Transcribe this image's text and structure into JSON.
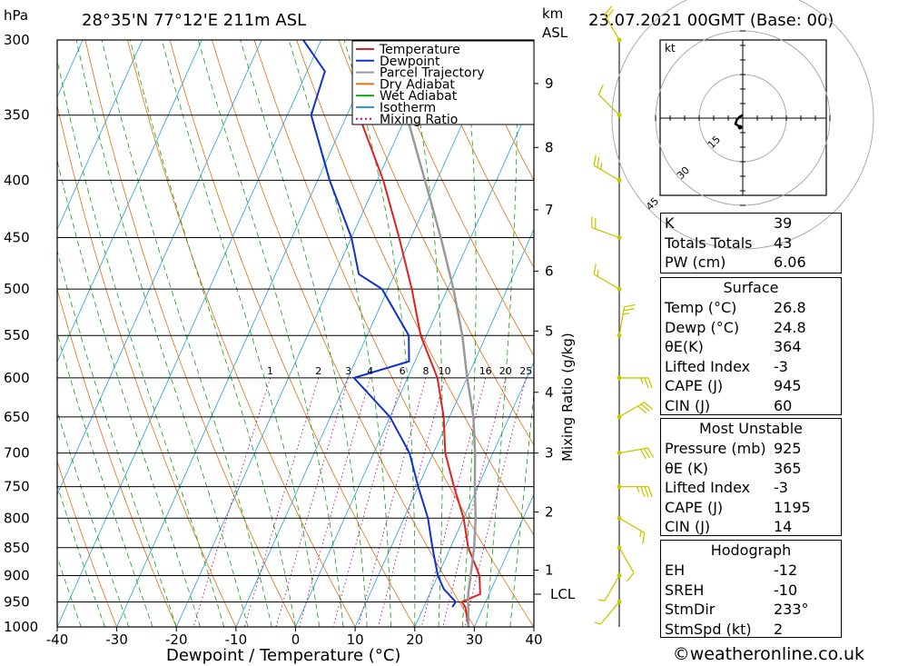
{
  "header": {
    "left_unit": "hPa",
    "location": "28°35'N  77°12'E  211m  ASL",
    "km_label": "km",
    "asl_label": "ASL",
    "datetime": "23.07.2021  00GMT  (Base: 00)"
  },
  "chart_data": {
    "type": "skew-t",
    "xlabel": "Dewpoint / Temperature (°C)",
    "ylabel_left": "hPa",
    "mixing_ratio_axis_label": "Mixing Ratio (g/kg)",
    "x_ticks": [
      -40,
      -30,
      -20,
      -10,
      0,
      10,
      20,
      30,
      40
    ],
    "pressure_levels": [
      300,
      350,
      400,
      450,
      500,
      550,
      600,
      650,
      700,
      750,
      800,
      850,
      900,
      950,
      1000
    ],
    "height_ticks_km": [
      {
        "km": "1",
        "p": 890
      },
      {
        "km": "2",
        "p": 790
      },
      {
        "km": "3",
        "p": 700
      },
      {
        "km": "4",
        "p": 618
      },
      {
        "km": "5",
        "p": 545
      },
      {
        "km": "6",
        "p": 482
      },
      {
        "km": "7",
        "p": 425
      },
      {
        "km": "8",
        "p": 374
      },
      {
        "km": "9",
        "p": 328
      }
    ],
    "lcl_label": "LCL",
    "lcl_pressure": 935,
    "mixing_ratio_labels": [
      "1",
      "2",
      "3",
      "4",
      "6",
      "8",
      "10",
      "16",
      "20",
      "25"
    ],
    "legend": [
      {
        "name": "Temperature",
        "color": "#e02020",
        "style": "solid"
      },
      {
        "name": "Dewpoint",
        "color": "#1030d0",
        "style": "solid"
      },
      {
        "name": "Parcel Trajectory",
        "color": "#999999",
        "style": "solid"
      },
      {
        "name": "Dry Adiabat",
        "color": "#e07010",
        "style": "solid"
      },
      {
        "name": "Wet Adiabat",
        "color": "#10a010",
        "style": "solid"
      },
      {
        "name": "Isotherm",
        "color": "#20a0e0",
        "style": "solid"
      },
      {
        "name": "Mixing Ratio",
        "color": "#c00080",
        "style": "dotted"
      }
    ],
    "series": [
      {
        "name": "Temperature",
        "points": [
          [
            1000,
            29
          ],
          [
            960,
            27
          ],
          [
            950,
            26
          ],
          [
            935,
            28.5
          ],
          [
            900,
            27
          ],
          [
            850,
            23
          ],
          [
            800,
            20
          ],
          [
            750,
            16
          ],
          [
            700,
            12
          ],
          [
            650,
            9
          ],
          [
            600,
            5
          ],
          [
            550,
            -1
          ],
          [
            500,
            -6
          ],
          [
            450,
            -12
          ],
          [
            400,
            -19
          ],
          [
            350,
            -28
          ]
        ]
      },
      {
        "name": "Dewpoint",
        "points": [
          [
            960,
            24.8
          ],
          [
            950,
            25
          ],
          [
            925,
            22
          ],
          [
            900,
            20
          ],
          [
            850,
            17
          ],
          [
            800,
            14
          ],
          [
            750,
            10
          ],
          [
            700,
            6
          ],
          [
            650,
            0
          ],
          [
            600,
            -9
          ],
          [
            580,
            -1
          ],
          [
            550,
            -3
          ],
          [
            500,
            -11
          ],
          [
            485,
            -16
          ],
          [
            450,
            -20
          ],
          [
            400,
            -28
          ],
          [
            350,
            -36
          ],
          [
            320,
            -37
          ],
          [
            300,
            -43
          ]
        ]
      },
      {
        "name": "Parcel Trajectory",
        "points": [
          [
            1000,
            29
          ],
          [
            935,
            26.5
          ],
          [
            900,
            25.5
          ],
          [
            850,
            24
          ],
          [
            800,
            22
          ],
          [
            750,
            19.5
          ],
          [
            700,
            17
          ],
          [
            650,
            14
          ],
          [
            600,
            10
          ],
          [
            550,
            6
          ],
          [
            500,
            1
          ],
          [
            450,
            -5
          ],
          [
            400,
            -12
          ],
          [
            350,
            -20
          ]
        ]
      }
    ],
    "wind_barbs": [
      {
        "p": 300,
        "dir": 330,
        "speed": 20
      },
      {
        "p": 350,
        "dir": 315,
        "speed": 10
      },
      {
        "p": 400,
        "dir": 300,
        "speed": 25
      },
      {
        "p": 450,
        "dir": 290,
        "speed": 20
      },
      {
        "p": 500,
        "dir": 300,
        "speed": 15
      },
      {
        "p": 550,
        "dir": 10,
        "speed": 25
      },
      {
        "p": 600,
        "dir": 90,
        "speed": 25
      },
      {
        "p": 650,
        "dir": 60,
        "speed": 30
      },
      {
        "p": 700,
        "dir": 80,
        "speed": 30
      },
      {
        "p": 750,
        "dir": 90,
        "speed": 35
      },
      {
        "p": 800,
        "dir": 120,
        "speed": 15
      },
      {
        "p": 850,
        "dir": 150,
        "speed": 10
      },
      {
        "p": 900,
        "dir": 210,
        "speed": 5
      },
      {
        "p": 950,
        "dir": 220,
        "speed": 5
      }
    ],
    "hodograph": {
      "unit_label": "kt",
      "ring_labels": [
        "15",
        "30",
        "45"
      ],
      "points": [
        [
          0.0,
          -1.0
        ],
        [
          -1.0,
          -0.5
        ],
        [
          -2.0,
          0.5
        ],
        [
          -2.5,
          2.0
        ],
        [
          -1.0,
          3.0
        ]
      ]
    }
  },
  "indices": {
    "basic": [
      {
        "label": "K",
        "value": "39"
      },
      {
        "label": "Totals Totals",
        "value": "43"
      },
      {
        "label": "PW (cm)",
        "value": "6.06"
      }
    ],
    "surface": {
      "title": "Surface",
      "rows": [
        {
          "label": "Temp (°C)",
          "value": "26.8"
        },
        {
          "label": "Dewp (°C)",
          "value": "24.8"
        },
        {
          "label": "θE(K)",
          "value": "364"
        },
        {
          "label": "Lifted Index",
          "value": "-3"
        },
        {
          "label": "CAPE (J)",
          "value": "945"
        },
        {
          "label": "CIN (J)",
          "value": "60"
        }
      ]
    },
    "most_unstable": {
      "title": "Most Unstable",
      "rows": [
        {
          "label": "Pressure (mb)",
          "value": "925"
        },
        {
          "label": "θE (K)",
          "value": "365"
        },
        {
          "label": "Lifted Index",
          "value": "-3"
        },
        {
          "label": "CAPE (J)",
          "value": "1195"
        },
        {
          "label": "CIN (J)",
          "value": "14"
        }
      ]
    },
    "hodograph_table": {
      "title": "Hodograph",
      "rows": [
        {
          "label": "EH",
          "value": "-12"
        },
        {
          "label": "SREH",
          "value": "-10"
        },
        {
          "label": "StmDir",
          "value": "233°"
        },
        {
          "label": "StmSpd (kt)",
          "value": "2"
        }
      ]
    }
  },
  "footer": {
    "copyright": "©weatheronline.co.uk"
  }
}
